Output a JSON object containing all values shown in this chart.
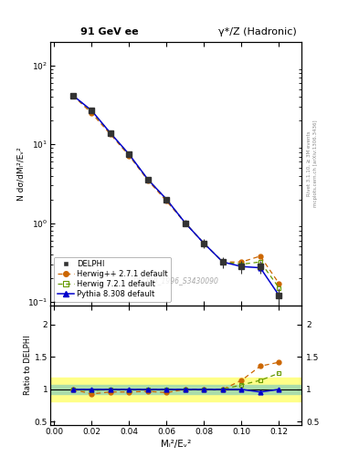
{
  "title_left": "91 GeV ee",
  "title_right": "γ*/Z (Hadronic)",
  "ylabel_main": "N dσ/dMₗ²/Eᵥ²",
  "ylabel_ratio": "Ratio to DELPHI",
  "xlabel": "Mₗ²/Eᵥ²",
  "watermark": "DELPHI_1996_S3430090",
  "right_label_top": "Rivet 3.1.10, ≥ 3M events",
  "right_label_bot": "mcplots.cern.ch [arXiv:1306.3436]",
  "x_data": [
    0.01,
    0.02,
    0.03,
    0.04,
    0.05,
    0.06,
    0.07,
    0.08,
    0.09,
    0.1,
    0.11,
    0.12
  ],
  "delphi_y": [
    42.0,
    27.0,
    14.0,
    7.5,
    3.6,
    2.0,
    1.0,
    0.55,
    0.32,
    0.28,
    0.28,
    0.12
  ],
  "delphi_yerr": [
    2.0,
    1.5,
    0.8,
    0.5,
    0.3,
    0.15,
    0.1,
    0.07,
    0.05,
    0.05,
    0.05,
    0.03
  ],
  "herwig_pp_y": [
    42.0,
    25.0,
    13.5,
    7.2,
    3.5,
    1.9,
    1.0,
    0.55,
    0.32,
    0.32,
    0.38,
    0.17
  ],
  "herwig_7_y": [
    42.0,
    26.5,
    14.0,
    7.4,
    3.6,
    2.0,
    1.0,
    0.55,
    0.32,
    0.3,
    0.32,
    0.15
  ],
  "pythia_y": [
    42.0,
    27.0,
    14.0,
    7.5,
    3.6,
    2.0,
    1.0,
    0.55,
    0.32,
    0.28,
    0.27,
    0.12
  ],
  "delphi_color": "#333333",
  "herwig_pp_color": "#cc6600",
  "herwig_7_color": "#669900",
  "pythia_color": "#0000cc",
  "band_yellow": [
    0.82,
    1.18
  ],
  "band_green": [
    0.93,
    1.07
  ],
  "xlim": [
    -0.002,
    0.132
  ],
  "ylim_main": [
    0.09,
    200
  ],
  "ylim_ratio": [
    0.45,
    2.3
  ],
  "ratio_herwig_pp": [
    1.0,
    0.93,
    0.96,
    0.96,
    0.97,
    0.95,
    1.0,
    1.0,
    1.0,
    1.14,
    1.36,
    1.42
  ],
  "ratio_herwig_7": [
    1.0,
    0.98,
    1.0,
    0.99,
    1.0,
    1.0,
    1.0,
    1.0,
    1.0,
    1.07,
    1.14,
    1.25
  ],
  "ratio_pythia": [
    1.0,
    1.0,
    1.0,
    1.0,
    1.0,
    1.0,
    1.0,
    1.0,
    1.0,
    1.0,
    0.96,
    1.0
  ]
}
